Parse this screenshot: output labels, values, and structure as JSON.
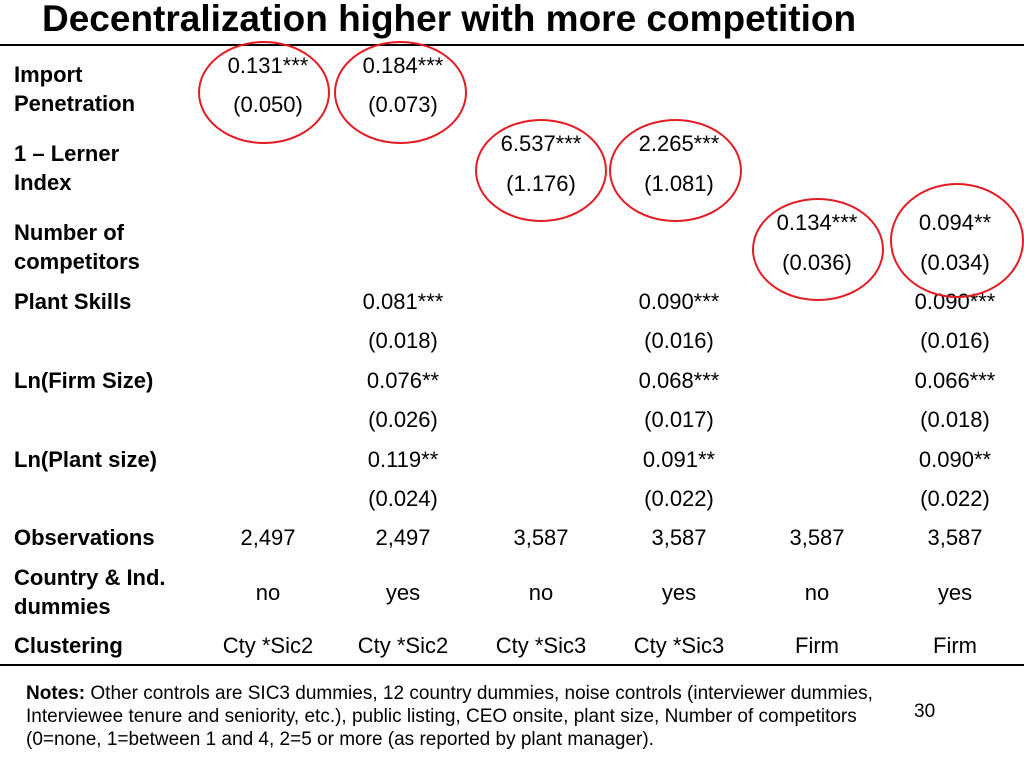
{
  "title": "Decentralization higher with more competition",
  "rows": {
    "import_penetration": {
      "label_line1": "Import",
      "label_line2": "Penetration",
      "c1_coef": "0.131***",
      "c1_se": "(0.050)",
      "c2_coef": "0.184***",
      "c2_se": "(0.073)"
    },
    "lerner": {
      "label_line1": "1 – Lerner",
      "label_line2": "Index",
      "c3_coef": "6.537***",
      "c3_se": "(1.176)",
      "c4_coef": "2.265***",
      "c4_se": "(1.081)"
    },
    "competitors": {
      "label_line1": "Number of",
      "label_line2": "competitors",
      "c5_coef": "0.134***",
      "c5_se": "(0.036)",
      "c6_coef": "0.094**",
      "c6_se": "(0.034)"
    },
    "plant_skills": {
      "label": "Plant Skills",
      "c2_coef": "0.081***",
      "c2_se": "(0.018)",
      "c4_coef": "0.090***",
      "c4_se": "(0.016)",
      "c6_coef": "0.090***",
      "c6_se": "(0.016)"
    },
    "firm_size": {
      "label": "Ln(Firm Size)",
      "c2_coef": "0.076**",
      "c2_se": "(0.026)",
      "c4_coef": "0.068***",
      "c4_se": "(0.017)",
      "c6_coef": "0.066***",
      "c6_se": "(0.018)"
    },
    "plant_size": {
      "label": "Ln(Plant size)",
      "c2_coef": "0.119**",
      "c2_se": "(0.024)",
      "c4_coef": "0.091**",
      "c4_se": "(0.022)",
      "c6_coef": "0.090**",
      "c6_se": "(0.022)"
    },
    "observations": {
      "label": "Observations",
      "values": [
        "2,497",
        "2,497",
        "3,587",
        "3,587",
        "3,587",
        "3,587"
      ]
    },
    "dummies": {
      "label_line1": "Country & Ind.",
      "label_line2": "dummies",
      "values": [
        "no",
        "yes",
        "no",
        "yes",
        "no",
        "yes"
      ]
    },
    "clustering": {
      "label": "Clustering",
      "values": [
        "Cty *Sic2",
        "Cty *Sic2",
        "Cty *Sic3",
        "Cty *Sic3",
        "Firm",
        "Firm"
      ]
    }
  },
  "notes": {
    "label": "Notes:",
    "line1": " Other controls are SIC3 dummies, 12 country dummies, noise controls (interviewer dummies,",
    "line2": "Interviewee tenure and seniority, etc.), public listing, CEO onsite, plant size, Number of competitors",
    "line3": " (0=none, 1=between 1 and 4, 2=5 or more (as reported by plant manager)."
  },
  "page_number": "30",
  "highlight_color": "#e31b23"
}
